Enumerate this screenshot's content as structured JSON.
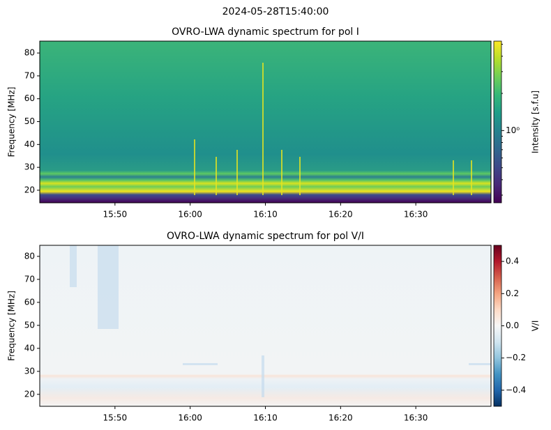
{
  "suptitle": "2024-05-28T15:40:00",
  "chart_data": [
    {
      "type": "heatmap",
      "title": "OVRO-LWA dynamic spectrum for pol I",
      "ylabel": "Frequency [MHz]",
      "xlim": [
        "15:40",
        "16:40"
      ],
      "xticks": [
        "15:50",
        "16:00",
        "16:10",
        "16:20",
        "16:30"
      ],
      "ylim": [
        14.5,
        85.2
      ],
      "yticks": [
        20,
        30,
        40,
        50,
        60,
        70,
        80
      ],
      "colorbar": {
        "label": "Intensity [s.f.u]",
        "colormap": "viridis",
        "log_scale": true,
        "clim": [
          0.26,
          5.3
        ],
        "ticks": [
          {
            "value": 1,
            "label": "10⁰"
          }
        ],
        "minor_ticks": [
          0.3,
          0.4,
          0.5,
          0.6,
          0.7,
          0.8,
          0.9,
          2,
          3,
          4,
          5
        ]
      }
    },
    {
      "type": "heatmap",
      "title": "OVRO-LWA dynamic spectrum for pol V/I",
      "ylabel": "Frequency [MHz]",
      "xlim": [
        "15:40",
        "16:40"
      ],
      "xticks": [
        "15:50",
        "16:00",
        "16:10",
        "16:20",
        "16:30"
      ],
      "ylim": [
        14.8,
        84.8
      ],
      "yticks": [
        20,
        30,
        40,
        50,
        60,
        70,
        80
      ],
      "colorbar": {
        "label": "V/I",
        "colormap": "RdBu_r",
        "log_scale": false,
        "clim": [
          -0.5,
          0.5
        ],
        "ticks": [
          {
            "value": 0.4,
            "label": "0.4"
          },
          {
            "value": 0.2,
            "label": "0.2"
          },
          {
            "value": 0,
            "label": "0.0"
          },
          {
            "value": -0.2,
            "label": "−0.2"
          },
          {
            "value": -0.4,
            "label": "−0.4"
          }
        ],
        "minor_ticks": []
      }
    }
  ]
}
